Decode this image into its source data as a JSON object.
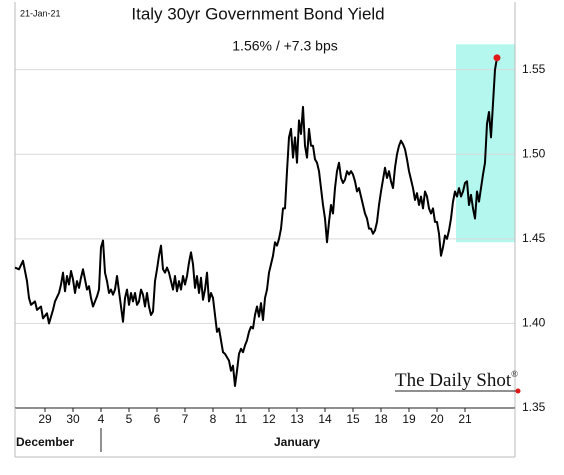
{
  "chart_data": {
    "type": "line",
    "date": "21-Jan-21",
    "title": "Italy 30yr Government Bond Yield",
    "subtitle": "1.56%  /  +7.3 bps",
    "watermark": "The Daily Shot",
    "watermark_mark": "®",
    "months": [
      {
        "label": "December",
        "value": 15
      },
      {
        "label": "January",
        "value": 141
      }
    ],
    "month_divider": 43,
    "xlim": [
      0,
      250
    ],
    "ylim": [
      1.35,
      1.59
    ],
    "yticks": [
      1.35,
      1.4,
      1.45,
      1.5,
      1.55
    ],
    "ytick_labels": [
      "1.35",
      "1.40",
      "1.45",
      "1.50",
      "1.55"
    ],
    "xticks": [
      {
        "value": 15,
        "label": "29"
      },
      {
        "value": 29,
        "label": "30"
      },
      {
        "value": 43,
        "label": "4"
      },
      {
        "value": 57,
        "label": "5"
      },
      {
        "value": 71,
        "label": "6"
      },
      {
        "value": 85,
        "label": "7"
      },
      {
        "value": 99,
        "label": "8"
      },
      {
        "value": 113,
        "label": "11"
      },
      {
        "value": 127,
        "label": "12"
      },
      {
        "value": 141,
        "label": "13"
      },
      {
        "value": 155,
        "label": "14"
      },
      {
        "value": 169,
        "label": "15"
      },
      {
        "value": 183,
        "label": "18"
      },
      {
        "value": 197,
        "label": "19"
      },
      {
        "value": 211,
        "label": "20"
      },
      {
        "value": 225,
        "label": "21"
      }
    ],
    "grid": true,
    "highlight": {
      "x": [
        220.5,
        250
      ],
      "y": [
        1.448,
        1.565
      ],
      "color": "#b3f7ee"
    },
    "last_marker_color": "#e01818",
    "series": [
      {
        "name": "Italy 30yr",
        "color": "#000000",
        "x": [
          0,
          2,
          4,
          6,
          7,
          8,
          10,
          11,
          13,
          14,
          16,
          17,
          19,
          20,
          22,
          23,
          24,
          25,
          26,
          27,
          28,
          29,
          30,
          31,
          32,
          33,
          34,
          35,
          36,
          37,
          38,
          39,
          40,
          41,
          42,
          43,
          44,
          45,
          46,
          47,
          48,
          49,
          50,
          51,
          52,
          53,
          54,
          55,
          56,
          57,
          58,
          59,
          60,
          61,
          62,
          63,
          64,
          65,
          66,
          67,
          68,
          69,
          70,
          71,
          72,
          73,
          74,
          75,
          76,
          77,
          78,
          79,
          80,
          81,
          82,
          83,
          84,
          85,
          86,
          87,
          88,
          89,
          90,
          91,
          92,
          93,
          94,
          95,
          96,
          97,
          98,
          99,
          100,
          101,
          102,
          103,
          104,
          105,
          106,
          107,
          108,
          109,
          110,
          111,
          112,
          113,
          114,
          115,
          116,
          117,
          118,
          119,
          120,
          121,
          122,
          123,
          124,
          125,
          126,
          127,
          128,
          129,
          130,
          131,
          132,
          133,
          134,
          135,
          136,
          137,
          138,
          139,
          140,
          141,
          142,
          143,
          144,
          145,
          146,
          147,
          148,
          149,
          150,
          151,
          152,
          153,
          154,
          155,
          156,
          157,
          158,
          159,
          160,
          161,
          162,
          163,
          164,
          165,
          166,
          167,
          168,
          169,
          170,
          171,
          172,
          173,
          174,
          175,
          176,
          177,
          178,
          179,
          180,
          181,
          182,
          183,
          184,
          185,
          186,
          187,
          188,
          189,
          190,
          191,
          192,
          193,
          194,
          195,
          196,
          197,
          198,
          199,
          200,
          201,
          202,
          203,
          204,
          205,
          206,
          207,
          208,
          209,
          210,
          211,
          212,
          213,
          214,
          215,
          216,
          217,
          218,
          219,
          220,
          221,
          222,
          223,
          224,
          225,
          226,
          227,
          228,
          229,
          230,
          231,
          232,
          233,
          234,
          235,
          236,
          237,
          238,
          239,
          240,
          241
        ],
        "values": [
          1.433,
          1.432,
          1.437,
          1.425,
          1.415,
          1.411,
          1.413,
          1.408,
          1.41,
          1.403,
          1.406,
          1.4,
          1.408,
          1.413,
          1.418,
          1.423,
          1.43,
          1.419,
          1.428,
          1.423,
          1.431,
          1.426,
          1.418,
          1.425,
          1.421,
          1.427,
          1.432,
          1.426,
          1.42,
          1.422,
          1.415,
          1.41,
          1.413,
          1.416,
          1.42,
          1.445,
          1.449,
          1.43,
          1.425,
          1.418,
          1.42,
          1.417,
          1.42,
          1.428,
          1.419,
          1.41,
          1.401,
          1.415,
          1.42,
          1.411,
          1.418,
          1.413,
          1.418,
          1.411,
          1.413,
          1.42,
          1.417,
          1.41,
          1.418,
          1.41,
          1.405,
          1.407,
          1.425,
          1.432,
          1.44,
          1.446,
          1.432,
          1.43,
          1.433,
          1.43,
          1.425,
          1.42,
          1.428,
          1.419,
          1.425,
          1.42,
          1.428,
          1.423,
          1.428,
          1.436,
          1.442,
          1.435,
          1.421,
          1.428,
          1.418,
          1.427,
          1.414,
          1.42,
          1.43,
          1.413,
          1.418,
          1.415,
          1.405,
          1.395,
          1.397,
          1.39,
          1.383,
          1.382,
          1.38,
          1.378,
          1.372,
          1.375,
          1.363,
          1.372,
          1.382,
          1.385,
          1.383,
          1.387,
          1.39,
          1.395,
          1.398,
          1.397,
          1.405,
          1.41,
          1.404,
          1.412,
          1.402,
          1.415,
          1.42,
          1.43,
          1.435,
          1.44,
          1.448,
          1.446,
          1.45,
          1.456,
          1.468,
          1.468,
          1.49,
          1.51,
          1.515,
          1.498,
          1.51,
          1.495,
          1.52,
          1.512,
          1.528,
          1.505,
          1.498,
          1.515,
          1.505,
          1.505,
          1.497,
          1.495,
          1.49,
          1.48,
          1.47,
          1.462,
          1.448,
          1.46,
          1.47,
          1.465,
          1.48,
          1.49,
          1.495,
          1.486,
          1.483,
          1.485,
          1.49,
          1.488,
          1.49,
          1.488,
          1.484,
          1.478,
          1.48,
          1.475,
          1.47,
          1.465,
          1.462,
          1.456,
          1.456,
          1.453,
          1.455,
          1.46,
          1.47,
          1.478,
          1.485,
          1.492,
          1.486,
          1.49,
          1.484,
          1.48,
          1.492,
          1.5,
          1.505,
          1.508,
          1.506,
          1.503,
          1.497,
          1.49,
          1.485,
          1.48,
          1.473,
          1.477,
          1.47,
          1.475,
          1.468,
          1.478,
          1.475,
          1.468,
          1.465,
          1.468,
          1.46,
          1.46,
          1.453,
          1.44,
          1.445,
          1.452,
          1.45,
          1.455,
          1.462,
          1.472,
          1.478,
          1.475,
          1.48,
          1.475,
          1.478,
          1.483,
          1.484,
          1.47,
          1.476,
          1.468,
          1.462,
          1.478,
          1.472,
          1.48,
          1.488,
          1.495,
          1.518,
          1.525,
          1.51,
          1.53,
          1.55,
          1.557
        ]
      }
    ]
  }
}
